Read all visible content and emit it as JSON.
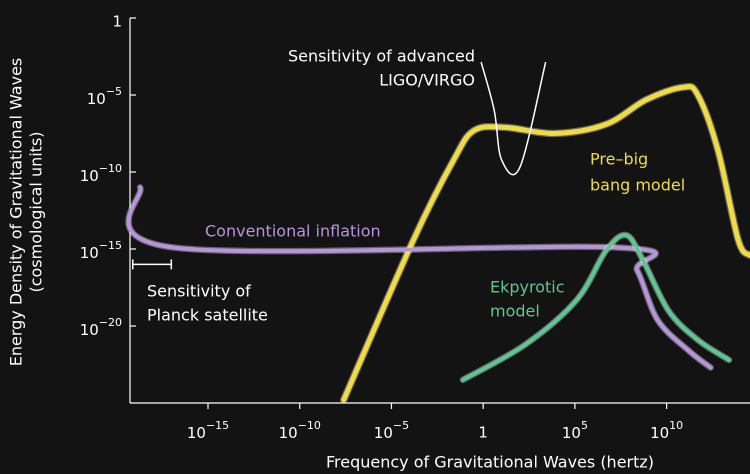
{
  "chart_data": {
    "type": "line",
    "log_x": true,
    "log_y": true,
    "xlabel": "Frequency of Gravitational Waves (hertz)",
    "ylabel": [
      "Energy Density of Gravitational Waves",
      "(cosmological units)"
    ],
    "xlim": [
      5.6e-20,
      350000000000000.0
    ],
    "ylim": [
      1e-25,
      1
    ],
    "xticks": [
      {
        "value": 1e-15,
        "label": "10−15"
      },
      {
        "value": 1e-10,
        "label": "10−10"
      },
      {
        "value": 1e-05,
        "label": "10−5"
      },
      1,
      {
        "value": 100000,
        "label": "105"
      },
      {
        "value": 10000000000,
        "label": "1010"
      }
    ],
    "yticks": [
      1,
      {
        "value": 1e-05,
        "label": "10−5"
      },
      {
        "value": 1e-10,
        "label": "10−10"
      },
      {
        "value": 1e-15,
        "label": "10−15"
      },
      {
        "value": 1e-20,
        "label": "10−20"
      }
    ],
    "series": [
      {
        "label_lines": [
          "Pre–big",
          "bang model"
        ],
        "color": "#f0dc40",
        "width": 5,
        "x": [
          2.5e-08,
          0.00016,
          0.025,
          0.32,
          16,
          7900,
          5000000.0,
          790000000.0,
          79000000000.0,
          500000000000.0,
          6300000000000.0,
          79000000000000.0,
          320000000000000.0
        ],
        "values": [
          1.6e-25,
          4e-15,
          6.3e-10,
          5e-08,
          7.9e-08,
          3.2e-08,
          1.26e-07,
          5e-06,
          3.2e-05,
          1e-05,
          2.5e-09,
          4e-15,
          4e-16
        ]
      },
      {
        "label_lines": [
          "Conventional inflation"
        ],
        "color": "#b894dc",
        "width": 4,
        "x": [
          2e-19,
          1.26e-17,
          20000000.0,
          250000000.0,
          3200000000.0,
          160000000000.0,
          2500000000000.0
        ],
        "values": [
          1e-11,
          1.26e-15,
          1.26e-15,
          4e-17,
          2.5e-20,
          2.5e-22,
          2e-23
        ]
      },
      {
        "label_lines": [
          "Ekpyrotic",
          "model"
        ],
        "color": "#5cc890",
        "width": 4,
        "x": [
          0.079,
          200,
          126000,
          5000000.0,
          63000000.0,
          500000000.0,
          12600000000.0,
          500000000000.0,
          25000000000000.0
        ],
        "values": [
          3.2e-24,
          6.3e-22,
          5e-19,
          7.9e-16,
          7.9e-15,
          2e-16,
          1e-19,
          1.26e-21,
          6.3e-23
        ]
      },
      {
        "label_lines": [
          "Sensitivity of advanced",
          "LIGO/VIRGO"
        ],
        "color": "#ffffff",
        "width": 1.5,
        "x": [
          0.79,
          4,
          10,
          100,
          2500
        ],
        "values": [
          0.00126,
          1e-06,
          6.3e-10,
          2e-10,
          0.00126
        ]
      },
      {
        "label_lines": [
          "Sensitivity of",
          "Planck satellite"
        ],
        "color": "#ffffff",
        "width": 1.5,
        "errorbar": true,
        "x": [
          7.9e-20,
          1e-17
        ],
        "values": [
          1e-16,
          1e-16
        ]
      }
    ]
  }
}
